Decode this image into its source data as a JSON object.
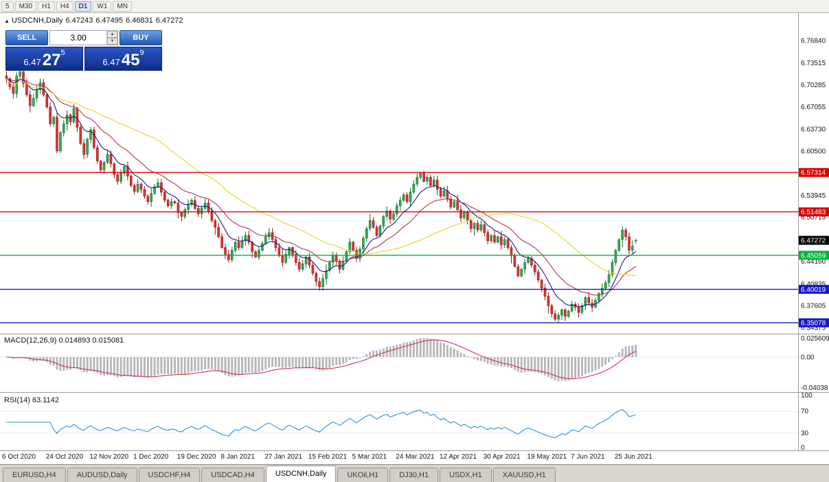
{
  "toolbar": {
    "timeframes": [
      {
        "label": "5",
        "active": false
      },
      {
        "label": "M30",
        "active": false
      },
      {
        "label": "H1",
        "active": false
      },
      {
        "label": "H4",
        "active": false
      },
      {
        "label": "D1",
        "active": true
      },
      {
        "label": "W1",
        "active": false
      },
      {
        "label": "MN",
        "active": false
      }
    ]
  },
  "chart_header": {
    "symbol": "USDCNH,Daily",
    "open": "6.47243",
    "high": "6.47495",
    "low": "6.46831",
    "close": "6.47272"
  },
  "one_click": {
    "sell_label": "SELL",
    "buy_label": "BUY",
    "volume": "3.00",
    "bid": {
      "prefix": "6.47",
      "big": "27",
      "sup": "5"
    },
    "ask": {
      "prefix": "6.47",
      "big": "45",
      "sup": "9"
    }
  },
  "indicators": {
    "macd": {
      "label": "MACD(12,26,9) 0.014893 0.015081",
      "axis": [
        "0.025609",
        "0.00",
        "-0.04038"
      ]
    },
    "rsi": {
      "label": "RSI(14) 63.1142",
      "axis": [
        "100",
        "70",
        "30",
        "0"
      ],
      "levels": [
        70,
        30
      ]
    }
  },
  "chart_data": {
    "type": "candlestick",
    "symbol": "USDCNH",
    "period": "Daily",
    "ylim": [
      6.3346,
      6.809
    ],
    "closes": [
      6.712,
      6.7,
      6.69,
      6.716,
      6.722,
      6.705,
      6.688,
      6.672,
      6.683,
      6.696,
      6.706,
      6.688,
      6.67,
      6.645,
      6.655,
      6.605,
      6.632,
      6.645,
      6.658,
      6.648,
      6.668,
      6.64,
      6.616,
      6.6,
      6.622,
      6.636,
      6.61,
      6.59,
      6.577,
      6.588,
      6.6,
      6.586,
      6.57,
      6.56,
      6.572,
      6.582,
      6.568,
      6.554,
      6.545,
      6.556,
      6.548,
      6.538,
      6.53,
      6.542,
      6.552,
      6.558,
      6.544,
      6.532,
      6.524,
      6.53,
      6.528,
      6.514,
      6.508,
      6.518,
      6.526,
      6.532,
      6.52,
      6.512,
      6.52,
      6.528,
      6.516,
      6.502,
      6.492,
      6.478,
      6.462,
      6.452,
      6.444,
      6.458,
      6.47,
      6.462,
      6.472,
      6.48,
      6.47,
      6.456,
      6.448,
      6.458,
      6.468,
      6.478,
      6.484,
      6.474,
      6.462,
      6.45,
      6.44,
      6.452,
      6.462,
      6.452,
      6.44,
      6.43,
      6.438,
      6.448,
      6.436,
      6.424,
      6.412,
      6.404,
      6.416,
      6.428,
      6.44,
      6.45,
      6.442,
      6.43,
      6.442,
      6.456,
      6.47,
      6.458,
      6.446,
      6.46,
      6.476,
      6.49,
      6.502,
      6.492,
      6.48,
      6.494,
      6.508,
      6.516,
      6.504,
      6.512,
      6.524,
      6.532,
      6.54,
      6.53,
      6.544,
      6.556,
      6.566,
      6.572,
      6.56,
      6.566,
      6.554,
      6.562,
      6.548,
      6.538,
      6.546,
      6.534,
      6.522,
      6.53,
      6.518,
      6.506,
      6.514,
      6.502,
      6.49,
      6.498,
      6.488,
      6.496,
      6.484,
      6.472,
      6.48,
      6.47,
      6.478,
      6.466,
      6.474,
      6.462,
      6.45,
      6.434,
      6.42,
      6.43,
      6.44,
      6.446,
      6.436,
      6.426,
      6.414,
      6.402,
      6.39,
      6.376,
      6.364,
      6.356,
      6.362,
      6.37,
      6.36,
      6.368,
      6.378,
      6.374,
      6.366,
      6.376,
      6.388,
      6.38,
      6.374,
      6.384,
      6.394,
      6.402,
      6.41,
      6.422,
      6.44,
      6.458,
      6.474,
      6.488,
      6.478,
      6.458,
      6.464,
      6.4727
    ],
    "last_ohlc": {
      "open": 6.47243,
      "high": 6.47495,
      "low": 6.46831,
      "close": 6.47272
    },
    "y_ticks": [
      "6.76840",
      "6.73515",
      "6.70285",
      "6.67055",
      "6.63730",
      "6.60500",
      "6.53945",
      "6.50715",
      "6.44160",
      "6.40835",
      "6.37605",
      "6.34375"
    ],
    "x_labels": [
      {
        "label": "6 Oct 2020",
        "i": 0
      },
      {
        "label": "24 Oct 2020",
        "i": 13
      },
      {
        "label": "12 Nov 2020",
        "i": 26
      },
      {
        "label": "1 Dec 2020",
        "i": 39
      },
      {
        "label": "19 Dec 2020",
        "i": 52
      },
      {
        "label": "8 Jan 2021",
        "i": 65
      },
      {
        "label": "27 Jan 2021",
        "i": 78
      },
      {
        "label": "15 Feb 2021",
        "i": 91
      },
      {
        "label": "5 Mar 2021",
        "i": 104
      },
      {
        "label": "24 Mar 2021",
        "i": 117
      },
      {
        "label": "12 Apr 2021",
        "i": 130
      },
      {
        "label": "30 Apr 2021",
        "i": 143
      },
      {
        "label": "19 May 2021",
        "i": 156
      },
      {
        "label": "7 Jun 2021",
        "i": 169
      },
      {
        "label": "25 Jun 2021",
        "i": 182
      }
    ],
    "levels": [
      {
        "price": 6.57314,
        "label": "6.57314",
        "color": "#dd0000"
      },
      {
        "price": 6.51483,
        "label": "6.51483",
        "color": "#dd0000"
      },
      {
        "price": 6.45059,
        "label": "6.45059",
        "color": "#00b43c"
      },
      {
        "price": 6.40019,
        "label": "6.40019",
        "color": "#1717c8"
      },
      {
        "price": 6.35078,
        "label": "6.35078",
        "color": "#1717c8"
      }
    ],
    "current_price": {
      "value": 6.47272,
      "label": "6.47272",
      "color": "#000000"
    },
    "moving_averages": [
      {
        "period": 9,
        "type": "ema",
        "color": "#1a1a78"
      },
      {
        "period": 21,
        "type": "ema",
        "color": "#b43050"
      },
      {
        "period": 45,
        "type": "sma",
        "color": "#e8d222"
      }
    ],
    "colors": {
      "up": "#2db050",
      "up_edge": "#156a2e",
      "down": "#e03232",
      "down_edge": "#8f1616",
      "macd_hist": "#b8b8b8",
      "macd_signal": "#cc3344",
      "rsi": "#2a8fd8",
      "grid_dotted": "#c0c0c0"
    }
  },
  "tabs": [
    {
      "label": "EURUSD,H4",
      "active": false
    },
    {
      "label": "AUDUSD,Daily",
      "active": false
    },
    {
      "label": "USDCHF,H4",
      "active": false
    },
    {
      "label": "USDCAD,H4",
      "active": false
    },
    {
      "label": "USDCNH,Daily",
      "active": true
    },
    {
      "label": "UKOil,H1",
      "active": false
    },
    {
      "label": "DJ30,H1",
      "active": false
    },
    {
      "label": "USDX,H1",
      "active": false
    },
    {
      "label": "XAUUSD,H1",
      "active": false
    }
  ]
}
